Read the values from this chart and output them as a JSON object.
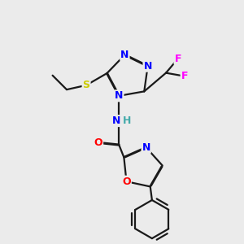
{
  "background_color": "#ebebeb",
  "bond_color": "#1a1a1a",
  "atom_colors": {
    "N": "#0000ff",
    "O": "#ff0000",
    "S": "#cccc00",
    "F": "#ff00ff",
    "C": "#1a1a1a",
    "H": "#44aaaa"
  },
  "figsize": [
    3.0,
    3.0
  ],
  "dpi": 100
}
